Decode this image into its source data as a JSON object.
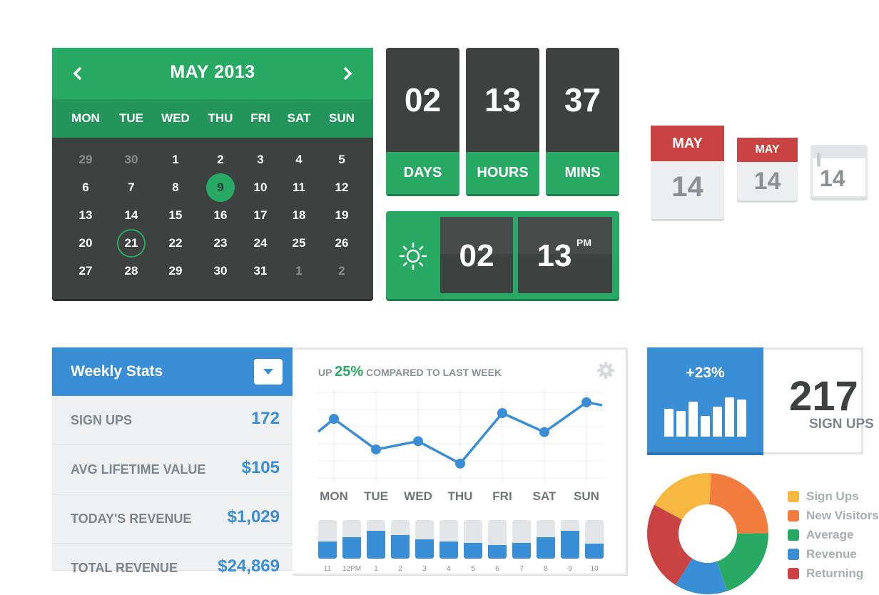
{
  "calendar": {
    "title": "MAY 2013",
    "weekdays": [
      "MON",
      "TUE",
      "WED",
      "THU",
      "FRI",
      "SAT",
      "SUN"
    ],
    "weeks": [
      [
        {
          "d": "29",
          "muted": true
        },
        {
          "d": "30",
          "muted": true
        },
        {
          "d": "1"
        },
        {
          "d": "2"
        },
        {
          "d": "3"
        },
        {
          "d": "4"
        },
        {
          "d": "5"
        }
      ],
      [
        {
          "d": "6"
        },
        {
          "d": "7"
        },
        {
          "d": "8"
        },
        {
          "d": "9",
          "state": "today"
        },
        {
          "d": "10"
        },
        {
          "d": "11"
        },
        {
          "d": "12"
        }
      ],
      [
        {
          "d": "13"
        },
        {
          "d": "14"
        },
        {
          "d": "15"
        },
        {
          "d": "16"
        },
        {
          "d": "17"
        },
        {
          "d": "18"
        },
        {
          "d": "19"
        }
      ],
      [
        {
          "d": "20"
        },
        {
          "d": "21",
          "state": "selected"
        },
        {
          "d": "22"
        },
        {
          "d": "23"
        },
        {
          "d": "24"
        },
        {
          "d": "25"
        },
        {
          "d": "26"
        }
      ],
      [
        {
          "d": "27"
        },
        {
          "d": "28"
        },
        {
          "d": "29"
        },
        {
          "d": "30"
        },
        {
          "d": "31"
        },
        {
          "d": "1",
          "muted": true
        },
        {
          "d": "2",
          "muted": true
        }
      ]
    ]
  },
  "countdown": [
    {
      "value": "02",
      "label": "DAYS"
    },
    {
      "value": "13",
      "label": "HOURS"
    },
    {
      "value": "37",
      "label": "MINS"
    }
  ],
  "clock": {
    "hours": "02",
    "minutes": "13",
    "ampm": "PM",
    "icon": "sun-icon"
  },
  "date_tiles": [
    {
      "month": "MAY",
      "day": "14"
    },
    {
      "month": "MAY",
      "day": "14"
    },
    {
      "day": "14"
    }
  ],
  "weekly_stats": {
    "title": "Weekly Stats",
    "rows": [
      {
        "label": "SIGN UPS",
        "value": "172"
      },
      {
        "label": "AVG LIFETIME VALUE",
        "value": "$105"
      },
      {
        "label": "TODAY'S REVENUE",
        "value": "$1,029"
      },
      {
        "label": "TOTAL REVENUE",
        "value": "$24,869"
      }
    ]
  },
  "chart_caption": {
    "prefix": "UP",
    "pct": "25%",
    "suffix": "COMPARED TO LAST WEEK"
  },
  "chart_data": [
    {
      "type": "line",
      "categories": [
        "MON",
        "TUE",
        "WED",
        "THU",
        "FRI",
        "SAT",
        "SUN"
      ],
      "values": [
        6.8,
        3.1,
        4.1,
        1.4,
        7.5,
        5.2,
        8.8
      ],
      "ylim": [
        0,
        10
      ],
      "grid": true
    },
    {
      "type": "bar",
      "categories": [
        "11",
        "12PM",
        "1",
        "2",
        "3",
        "4",
        "5",
        "6",
        "7",
        "8",
        "9",
        "10"
      ],
      "values": [
        0.45,
        0.55,
        0.72,
        0.62,
        0.5,
        0.45,
        0.4,
        0.35,
        0.4,
        0.55,
        0.72,
        0.38
      ],
      "ylim": [
        0,
        1
      ]
    },
    {
      "type": "bar",
      "values": [
        0.6,
        0.55,
        0.75,
        0.45,
        0.65,
        0.85,
        0.8
      ],
      "ylim": [
        0,
        1
      ]
    },
    {
      "type": "pie",
      "labels": [
        "Sign Ups",
        "New Visitors",
        "Average",
        "Revenue",
        "Returning"
      ],
      "values": [
        18,
        24,
        20,
        14,
        24
      ],
      "colors": [
        "#f7b841",
        "#f27d3e",
        "#28a964",
        "#3a8ed6",
        "#c94343"
      ]
    }
  ],
  "signups": {
    "pct": "+23%",
    "number": "217",
    "label": "SIGN UPS"
  },
  "legend": [
    {
      "label": "Sign Ups",
      "color": "#f7b841"
    },
    {
      "label": "New Visitors",
      "color": "#f27d3e"
    },
    {
      "label": "Average",
      "color": "#28a964"
    },
    {
      "label": "Revenue",
      "color": "#3a8ed6"
    },
    {
      "label": "Returning",
      "color": "#c94343"
    }
  ]
}
